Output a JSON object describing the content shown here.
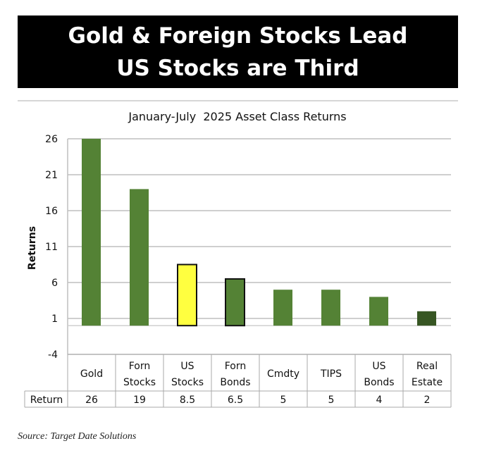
{
  "banner": {
    "line1": "Gold & Foreign Stocks Lead",
    "line2": "US Stocks are Third"
  },
  "source": "Source: Target Date Solutions",
  "chart_data": {
    "type": "bar",
    "title": "January-July  2025 Asset Class Returns",
    "ylabel": "Returns",
    "xlabel": "",
    "ylim": [
      -4,
      26
    ],
    "yticks": [
      26,
      21,
      16,
      11,
      6,
      1,
      -4
    ],
    "grid": true,
    "categories": [
      [
        "Gold"
      ],
      [
        "Forn",
        "Stocks"
      ],
      [
        "US",
        "Stocks"
      ],
      [
        "Forn",
        "Bonds"
      ],
      [
        "Cmdty"
      ],
      [
        "TIPS"
      ],
      [
        "US",
        "Bonds"
      ],
      [
        "Real",
        "Estate"
      ]
    ],
    "values": [
      26,
      19,
      8.5,
      6.5,
      5,
      5,
      4,
      2
    ],
    "colors": [
      "#548235",
      "#548235",
      "#FFFF40",
      "#548235",
      "#548235",
      "#548235",
      "#548235",
      "#375623"
    ],
    "outlined": [
      false,
      false,
      true,
      true,
      false,
      false,
      false,
      false
    ],
    "table": {
      "row_label": "Return",
      "values": [
        "26",
        "19",
        "8.5",
        "6.5",
        "5",
        "5",
        "4",
        "2"
      ]
    }
  }
}
